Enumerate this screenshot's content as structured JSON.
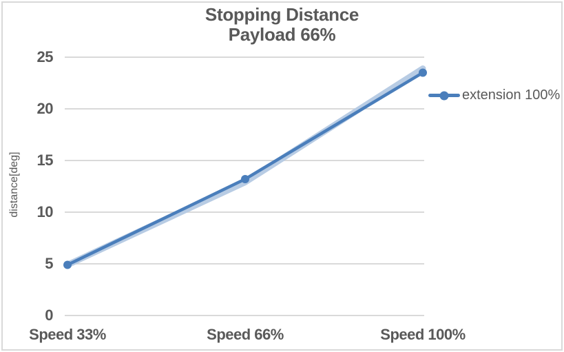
{
  "window": {
    "background": "#ffffff",
    "border_color": "#d9d9d9"
  },
  "chart_data": {
    "type": "line",
    "title": "Stopping Distance",
    "subtitle": "Payload 66%",
    "xlabel": "",
    "ylabel": "distance[deg]",
    "categories": [
      "Speed 33%",
      "Speed 66%",
      "Speed 100%"
    ],
    "yticks": [
      0,
      5,
      10,
      15,
      20,
      25
    ],
    "ylim": [
      0,
      25
    ],
    "grid": "horizontal",
    "legend_position": "right",
    "series": [
      {
        "name": "extension 100%",
        "values": [
          4.9,
          13.2,
          23.5
        ],
        "color": "#4a7ebb",
        "marker": "circle",
        "role": "main",
        "in_legend": true
      },
      {
        "name": "",
        "values": [
          4.9,
          12.9,
          23.9
        ],
        "color": "#b8cce4",
        "marker": "none",
        "role": "shadow",
        "in_legend": false
      }
    ],
    "colors": {
      "grid": "#d9d9d9",
      "text": "#595959",
      "title": "#595959"
    }
  },
  "legend": {
    "items": [
      {
        "label": "extension 100%",
        "color": "#4a7ebb"
      }
    ]
  }
}
